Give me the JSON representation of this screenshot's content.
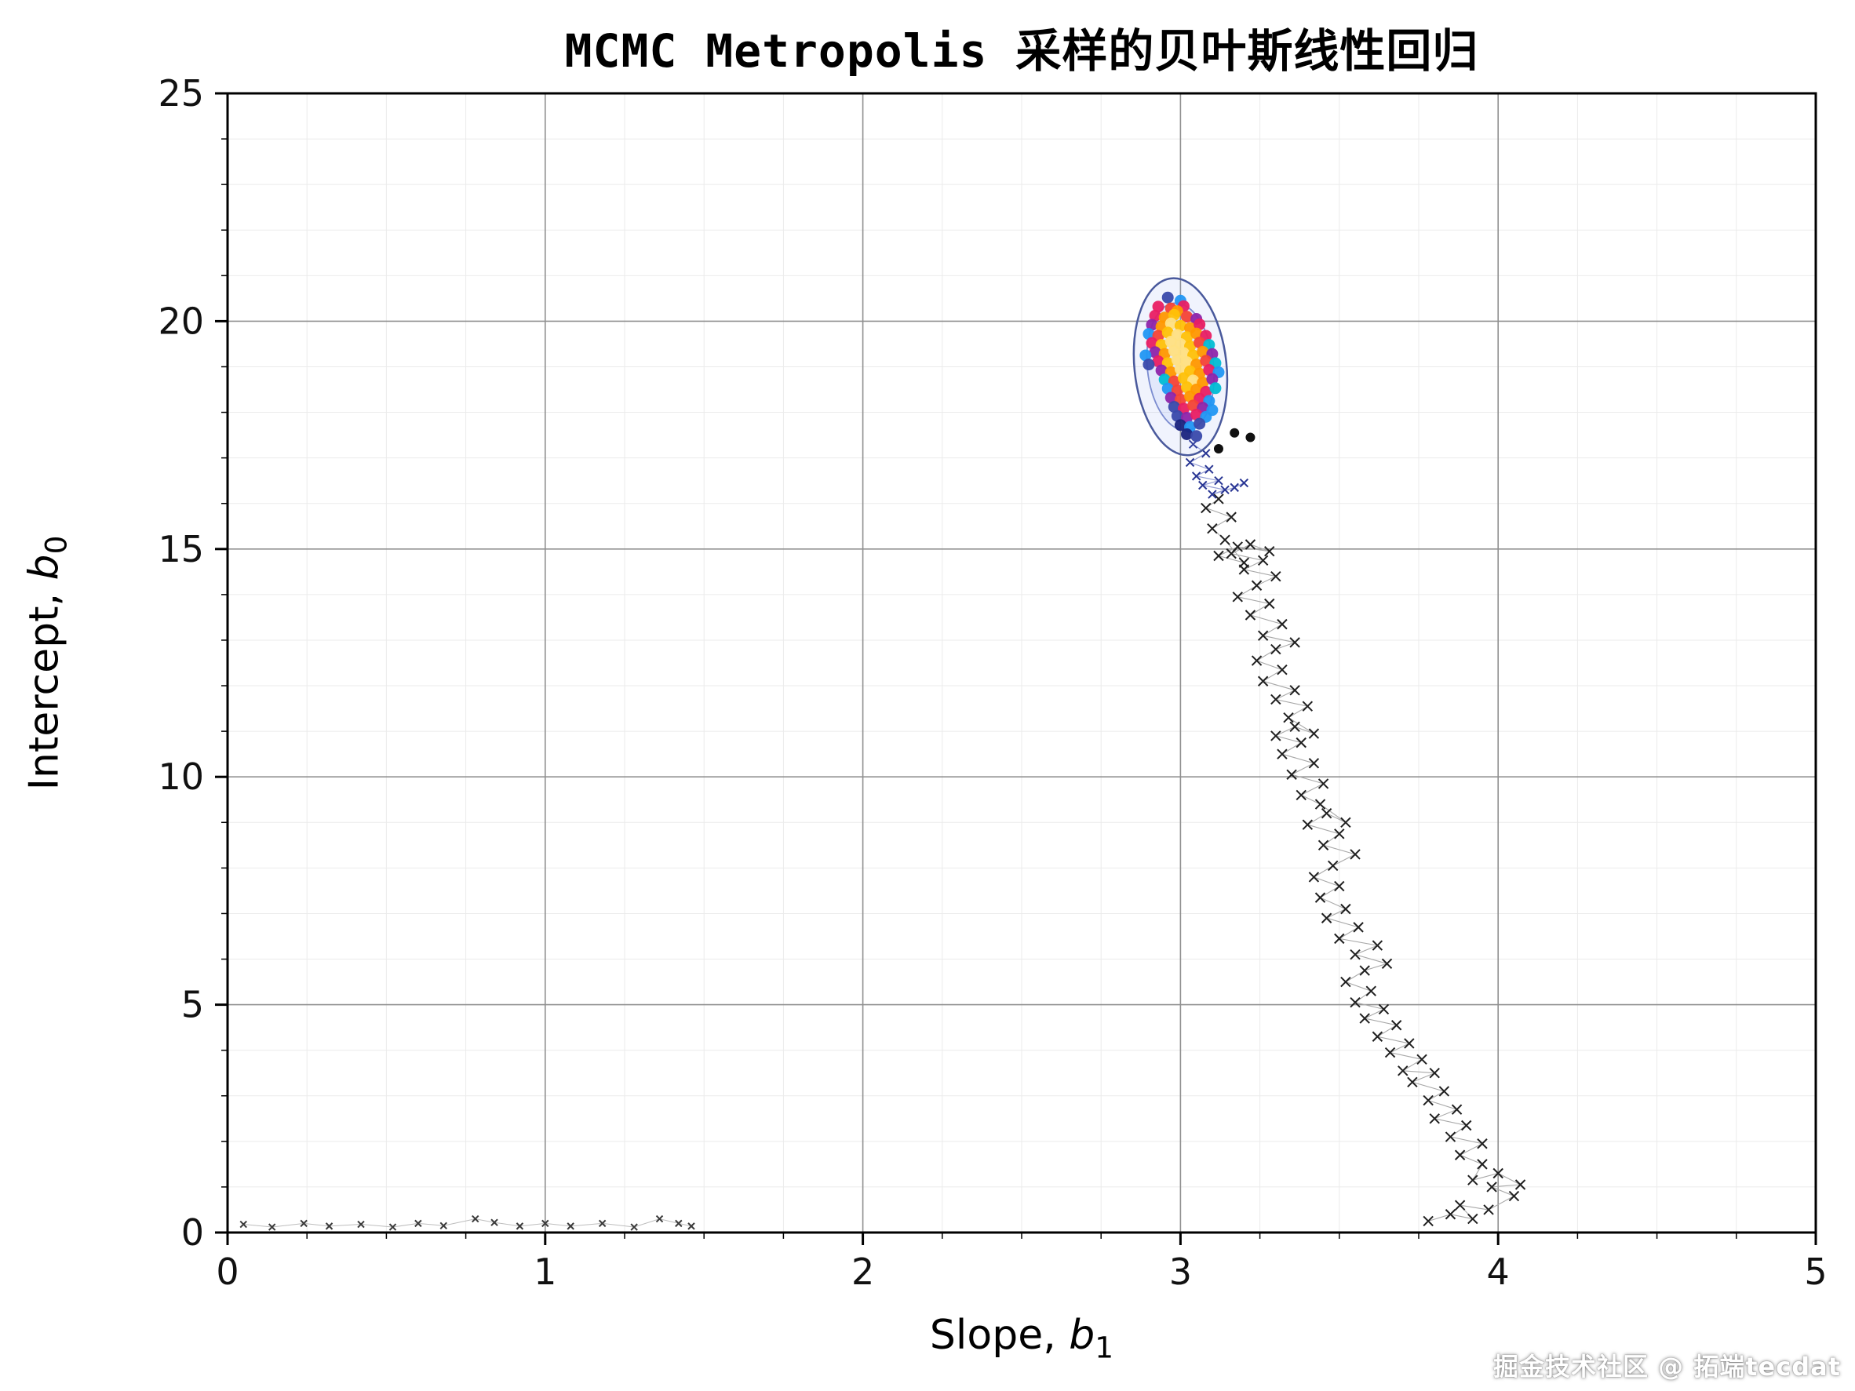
{
  "page": {
    "watermark": "掘金技术社区 @ 拓端tecdat"
  },
  "chart_data": {
    "type": "scatter",
    "title": "MCMC Metropolis 采样的贝叶斯线性回归",
    "xlabel": {
      "prefix": "Slope, ",
      "var": "b",
      "sub": "1"
    },
    "ylabel": {
      "prefix": "Intercept, ",
      "var": "b",
      "sub": "0"
    },
    "xlim": [
      0,
      5
    ],
    "ylim": [
      0,
      25
    ],
    "xticks": [
      0,
      1,
      2,
      3,
      4,
      5
    ],
    "yticks": [
      0,
      5,
      10,
      15,
      20,
      25
    ],
    "x_minor_step": 0.25,
    "y_minor_step": 1,
    "grid": {
      "major_color": "#909090",
      "minor_color": "#ebebeb"
    },
    "legend": "none",
    "series": [
      {
        "name": "burn-in-start",
        "type": "trace",
        "line_color": "#bdbdbd",
        "line_width": 1,
        "marker_color": "#3a3a3a",
        "marker_size": 4,
        "points": [
          [
            0.05,
            0.18
          ],
          [
            0.14,
            0.12
          ],
          [
            0.24,
            0.2
          ],
          [
            0.32,
            0.14
          ],
          [
            0.42,
            0.18
          ],
          [
            0.52,
            0.12
          ],
          [
            0.6,
            0.2
          ],
          [
            0.68,
            0.15
          ],
          [
            0.78,
            0.3
          ],
          [
            0.84,
            0.22
          ],
          [
            0.92,
            0.14
          ],
          [
            1.0,
            0.2
          ],
          [
            1.08,
            0.14
          ],
          [
            1.18,
            0.2
          ],
          [
            1.28,
            0.12
          ],
          [
            1.36,
            0.3
          ],
          [
            1.42,
            0.2
          ],
          [
            1.46,
            0.14
          ]
        ]
      },
      {
        "name": "burn-in-climb",
        "type": "trace",
        "line_color": "#a8a8a8",
        "line_width": 1.1,
        "marker_color": "#1f1f1f",
        "marker_size": 6,
        "points": [
          [
            3.78,
            0.25
          ],
          [
            3.85,
            0.4
          ],
          [
            3.92,
            0.3
          ],
          [
            3.88,
            0.6
          ],
          [
            3.97,
            0.5
          ],
          [
            4.05,
            0.8
          ],
          [
            3.98,
            1.0
          ],
          [
            4.07,
            1.05
          ],
          [
            4.0,
            1.3
          ],
          [
            3.92,
            1.15
          ],
          [
            3.95,
            1.5
          ],
          [
            3.88,
            1.7
          ],
          [
            3.95,
            1.95
          ],
          [
            3.85,
            2.1
          ],
          [
            3.9,
            2.35
          ],
          [
            3.8,
            2.5
          ],
          [
            3.87,
            2.7
          ],
          [
            3.78,
            2.9
          ],
          [
            3.83,
            3.1
          ],
          [
            3.73,
            3.3
          ],
          [
            3.8,
            3.5
          ],
          [
            3.7,
            3.55
          ],
          [
            3.76,
            3.8
          ],
          [
            3.66,
            3.95
          ],
          [
            3.72,
            4.15
          ],
          [
            3.62,
            4.3
          ],
          [
            3.68,
            4.55
          ],
          [
            3.58,
            4.7
          ],
          [
            3.64,
            4.9
          ],
          [
            3.55,
            5.05
          ],
          [
            3.6,
            5.3
          ],
          [
            3.52,
            5.5
          ],
          [
            3.58,
            5.75
          ],
          [
            3.65,
            5.9
          ],
          [
            3.55,
            6.1
          ],
          [
            3.62,
            6.3
          ],
          [
            3.5,
            6.45
          ],
          [
            3.56,
            6.7
          ],
          [
            3.46,
            6.9
          ],
          [
            3.52,
            7.1
          ],
          [
            3.44,
            7.35
          ],
          [
            3.5,
            7.6
          ],
          [
            3.42,
            7.8
          ],
          [
            3.48,
            8.05
          ],
          [
            3.55,
            8.3
          ],
          [
            3.45,
            8.5
          ],
          [
            3.5,
            8.75
          ],
          [
            3.4,
            8.95
          ],
          [
            3.46,
            9.2
          ],
          [
            3.52,
            9.0
          ],
          [
            3.44,
            9.4
          ],
          [
            3.38,
            9.6
          ],
          [
            3.45,
            9.85
          ],
          [
            3.35,
            10.05
          ],
          [
            3.42,
            10.3
          ],
          [
            3.32,
            10.5
          ],
          [
            3.38,
            10.75
          ],
          [
            3.3,
            10.9
          ],
          [
            3.36,
            11.1
          ],
          [
            3.42,
            10.95
          ],
          [
            3.34,
            11.3
          ],
          [
            3.4,
            11.55
          ],
          [
            3.3,
            11.7
          ],
          [
            3.36,
            11.9
          ],
          [
            3.26,
            12.1
          ],
          [
            3.32,
            12.35
          ],
          [
            3.24,
            12.55
          ],
          [
            3.3,
            12.8
          ],
          [
            3.36,
            12.95
          ],
          [
            3.26,
            13.1
          ],
          [
            3.32,
            13.35
          ],
          [
            3.22,
            13.55
          ],
          [
            3.28,
            13.8
          ],
          [
            3.18,
            13.95
          ],
          [
            3.24,
            14.2
          ],
          [
            3.3,
            14.4
          ],
          [
            3.2,
            14.55
          ],
          [
            3.26,
            14.75
          ],
          [
            3.16,
            14.9
          ],
          [
            3.22,
            15.1
          ],
          [
            3.28,
            14.95
          ],
          [
            3.18,
            15.05
          ],
          [
            3.12,
            14.85
          ],
          [
            3.2,
            14.7
          ],
          [
            3.14,
            15.2
          ],
          [
            3.1,
            15.45
          ],
          [
            3.16,
            15.7
          ],
          [
            3.08,
            15.9
          ],
          [
            3.12,
            16.1
          ]
        ]
      },
      {
        "name": "chain-tail",
        "type": "trace",
        "line_color": "rgba(63,81,181,0.55)",
        "line_width": 1.2,
        "marker_color": "#283593",
        "marker_size": 5,
        "points": [
          [
            3.04,
            17.3
          ],
          [
            3.08,
            17.1
          ],
          [
            3.03,
            16.9
          ],
          [
            3.09,
            16.75
          ],
          [
            3.05,
            16.6
          ],
          [
            3.12,
            16.5
          ],
          [
            3.07,
            16.4
          ],
          [
            3.14,
            16.3
          ],
          [
            3.1,
            16.2
          ],
          [
            3.17,
            16.35
          ],
          [
            3.2,
            16.45
          ]
        ]
      },
      {
        "name": "density-contour",
        "type": "contour",
        "cx": 3.0,
        "cy": 19.0,
        "rx": 0.145,
        "ry": 1.95,
        "rotation_deg": -6,
        "stroke": "#49599c",
        "inner_stroke": "#7b8cd0",
        "fill": "rgba(130,160,235,0.12)"
      },
      {
        "name": "posterior-samples",
        "type": "dots",
        "radius": 7.5,
        "opacity": 0.95,
        "palette": [
          "#1a237e",
          "#3949ab",
          "#2196f3",
          "#00bcd4",
          "#8e24aa",
          "#e91e63",
          "#f44336",
          "#ff9800",
          "#ffc107",
          "#ffe082"
        ],
        "points": [
          [
            2.96,
            20.52,
            1
          ],
          [
            3.0,
            20.45,
            2
          ],
          [
            2.93,
            20.32,
            5
          ],
          [
            2.97,
            20.28,
            6
          ],
          [
            3.01,
            20.33,
            5
          ],
          [
            2.99,
            20.22,
            7
          ],
          [
            2.92,
            20.12,
            5
          ],
          [
            2.95,
            20.08,
            7
          ],
          [
            2.98,
            20.14,
            8
          ],
          [
            3.02,
            20.1,
            6
          ],
          [
            3.05,
            20.05,
            4
          ],
          [
            2.91,
            19.92,
            4
          ],
          [
            2.94,
            19.88,
            7
          ],
          [
            2.97,
            19.95,
            9
          ],
          [
            3.0,
            19.9,
            8
          ],
          [
            3.03,
            19.85,
            7
          ],
          [
            3.06,
            19.93,
            5
          ],
          [
            2.9,
            19.72,
            2
          ],
          [
            2.93,
            19.68,
            6
          ],
          [
            2.96,
            19.75,
            8
          ],
          [
            2.99,
            19.7,
            9
          ],
          [
            3.02,
            19.65,
            8
          ],
          [
            3.05,
            19.73,
            7
          ],
          [
            3.08,
            19.68,
            5
          ],
          [
            2.91,
            19.52,
            5
          ],
          [
            2.94,
            19.48,
            8
          ],
          [
            2.97,
            19.55,
            9
          ],
          [
            3.0,
            19.5,
            9
          ],
          [
            3.03,
            19.45,
            8
          ],
          [
            3.06,
            19.53,
            6
          ],
          [
            3.09,
            19.48,
            3
          ],
          [
            2.92,
            19.32,
            4
          ],
          [
            2.95,
            19.28,
            7
          ],
          [
            2.98,
            19.35,
            9
          ],
          [
            3.01,
            19.3,
            9
          ],
          [
            3.04,
            19.25,
            8
          ],
          [
            3.07,
            19.33,
            7
          ],
          [
            3.1,
            19.28,
            4
          ],
          [
            2.89,
            19.25,
            2
          ],
          [
            2.93,
            19.12,
            5
          ],
          [
            2.96,
            19.08,
            8
          ],
          [
            2.99,
            19.15,
            9
          ],
          [
            3.02,
            19.1,
            9
          ],
          [
            3.05,
            19.05,
            7
          ],
          [
            3.08,
            19.13,
            6
          ],
          [
            3.11,
            19.08,
            3
          ],
          [
            2.9,
            19.05,
            1
          ],
          [
            2.94,
            18.92,
            4
          ],
          [
            2.97,
            18.88,
            7
          ],
          [
            3.0,
            18.95,
            9
          ],
          [
            3.03,
            18.9,
            8
          ],
          [
            3.06,
            18.85,
            7
          ],
          [
            3.09,
            18.93,
            5
          ],
          [
            3.12,
            18.88,
            2
          ],
          [
            2.95,
            18.72,
            3
          ],
          [
            2.98,
            18.68,
            6
          ],
          [
            3.01,
            18.75,
            8
          ],
          [
            3.04,
            18.7,
            9
          ],
          [
            3.07,
            18.65,
            7
          ],
          [
            3.1,
            18.73,
            4
          ],
          [
            2.96,
            18.52,
            2
          ],
          [
            2.99,
            18.48,
            6
          ],
          [
            3.02,
            18.55,
            8
          ],
          [
            3.05,
            18.5,
            7
          ],
          [
            3.08,
            18.45,
            5
          ],
          [
            3.11,
            18.53,
            3
          ],
          [
            2.97,
            18.32,
            4
          ],
          [
            3.0,
            18.28,
            6
          ],
          [
            3.03,
            18.35,
            7
          ],
          [
            3.06,
            18.3,
            5
          ],
          [
            3.09,
            18.25,
            2
          ],
          [
            2.98,
            18.12,
            1
          ],
          [
            3.01,
            18.08,
            5
          ],
          [
            3.04,
            18.15,
            6
          ],
          [
            3.07,
            18.1,
            4
          ],
          [
            3.1,
            18.05,
            2
          ],
          [
            2.99,
            17.92,
            1
          ],
          [
            3.02,
            17.88,
            4
          ],
          [
            3.05,
            17.95,
            5
          ],
          [
            3.08,
            17.9,
            2
          ],
          [
            3.0,
            17.72,
            0
          ],
          [
            3.03,
            17.68,
            2
          ],
          [
            3.06,
            17.75,
            1
          ],
          [
            3.02,
            17.52,
            0
          ],
          [
            3.05,
            17.48,
            1
          ]
        ]
      },
      {
        "name": "accepted-dots",
        "type": "dots",
        "radius": 6,
        "opacity": 1,
        "palette": [
          "#111111"
        ],
        "points": [
          [
            3.17,
            17.55,
            0
          ],
          [
            3.22,
            17.45,
            0
          ],
          [
            3.12,
            17.2,
            0
          ]
        ]
      }
    ]
  }
}
